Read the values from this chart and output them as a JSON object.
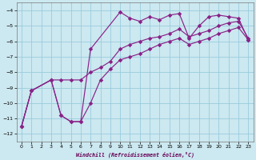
{
  "background_color": "#cce8f0",
  "grid_color": "#99ccdd",
  "line_color": "#882288",
  "xlim": [
    -0.5,
    23.5
  ],
  "ylim": [
    -12.5,
    -3.5
  ],
  "xticks": [
    0,
    1,
    2,
    3,
    4,
    5,
    6,
    7,
    8,
    9,
    10,
    11,
    12,
    13,
    14,
    15,
    16,
    17,
    18,
    19,
    20,
    21,
    22,
    23
  ],
  "yticks": [
    -12,
    -11,
    -10,
    -9,
    -8,
    -7,
    -6,
    -5,
    -4
  ],
  "xlabel": "Windchill (Refroidissement éolien,°C)",
  "series1_x": [
    0,
    1,
    3,
    4,
    5,
    6,
    7,
    10,
    11,
    12,
    13,
    14,
    15,
    16,
    17,
    18,
    19,
    20,
    21,
    22,
    23
  ],
  "series1_y": [
    -11.5,
    -9.2,
    -8.5,
    -10.8,
    -11.2,
    -11.2,
    -6.5,
    -4.1,
    -4.5,
    -4.7,
    -4.4,
    -4.6,
    -4.3,
    -4.2,
    -5.8,
    -5.0,
    -4.4,
    -4.3,
    -4.4,
    -4.5,
    -5.9
  ],
  "series2_x": [
    0,
    1,
    3,
    4,
    5,
    6,
    7,
    8,
    9,
    10,
    11,
    12,
    13,
    14,
    15,
    16,
    17,
    18,
    19,
    20,
    21,
    22,
    23
  ],
  "series2_y": [
    -11.5,
    -9.2,
    -8.5,
    -8.5,
    -8.5,
    -8.5,
    -8.0,
    -7.7,
    -7.3,
    -6.5,
    -6.2,
    -6.0,
    -5.8,
    -5.7,
    -5.5,
    -5.2,
    -5.7,
    -5.5,
    -5.3,
    -5.0,
    -4.8,
    -4.7,
    -5.8
  ],
  "series3_x": [
    0,
    1,
    3,
    4,
    5,
    6,
    7,
    8,
    9,
    10,
    11,
    12,
    13,
    14,
    15,
    16,
    17,
    18,
    19,
    20,
    21,
    22,
    23
  ],
  "series3_y": [
    -11.5,
    -9.2,
    -8.5,
    -10.8,
    -11.2,
    -11.2,
    -10.0,
    -8.5,
    -7.8,
    -7.2,
    -7.0,
    -6.8,
    -6.5,
    -6.2,
    -6.0,
    -5.8,
    -6.2,
    -6.0,
    -5.8,
    -5.5,
    -5.3,
    -5.1,
    -5.9
  ]
}
